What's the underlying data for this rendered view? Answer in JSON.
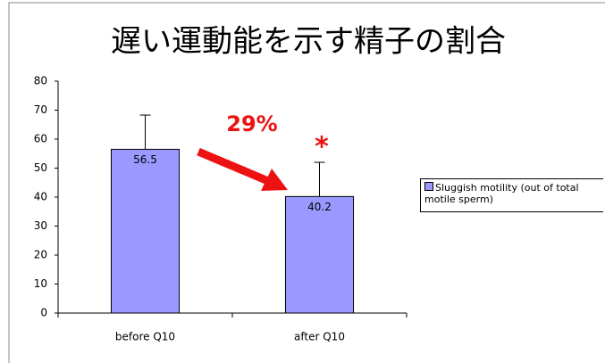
{
  "chart_data": {
    "type": "bar",
    "title": "遅い運動能を示す精子の割合",
    "categories": [
      "before Q10",
      "after Q10"
    ],
    "series": [
      {
        "name": "Sluggish motility (out of total motile sperm)",
        "color": "#9999ff",
        "values": [
          56.5,
          40.2
        ],
        "errors": [
          11.8,
          11.8
        ]
      }
    ],
    "ylim": [
      0,
      80
    ],
    "yticks": [
      0,
      10,
      20,
      30,
      40,
      50,
      60,
      70,
      80
    ],
    "annotations": [
      "29%",
      "*"
    ],
    "legend": "right"
  }
}
